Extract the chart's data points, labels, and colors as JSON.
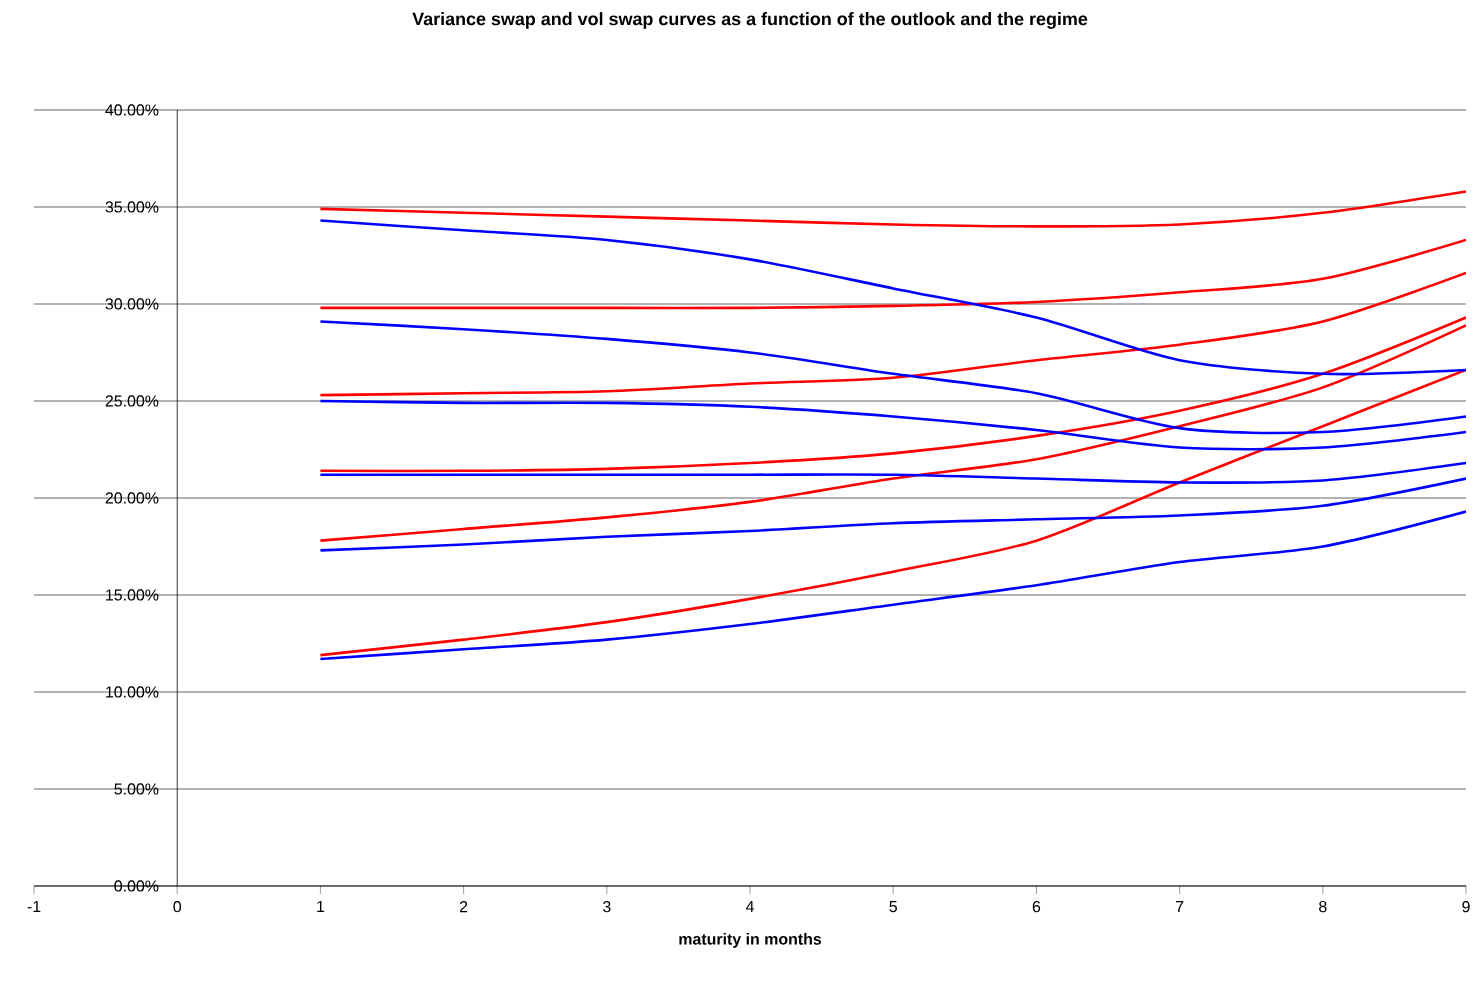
{
  "chart_data": {
    "type": "line",
    "title": "Variance swap and vol swap curves as a function of the outlook and the regime",
    "xlabel": "maturity in months",
    "x": [
      1,
      2,
      3,
      4,
      5,
      6,
      7,
      8,
      9
    ],
    "series": [
      {
        "color": "#ff0000",
        "values": [
          34.9,
          34.7,
          34.5,
          34.3,
          34.1,
          34.0,
          34.1,
          34.7,
          35.8
        ]
      },
      {
        "color": "#ff0000",
        "values": [
          29.8,
          29.8,
          29.8,
          29.8,
          29.9,
          30.1,
          30.6,
          31.3,
          33.3
        ]
      },
      {
        "color": "#ff0000",
        "values": [
          25.3,
          25.4,
          25.5,
          25.9,
          26.2,
          27.1,
          27.9,
          29.1,
          31.6
        ]
      },
      {
        "color": "#ff0000",
        "values": [
          21.4,
          21.4,
          21.5,
          21.8,
          22.3,
          23.2,
          24.5,
          26.4,
          29.3
        ]
      },
      {
        "color": "#ff0000",
        "values": [
          17.8,
          18.4,
          19.0,
          19.8,
          21.0,
          22.0,
          23.7,
          25.7,
          28.9
        ]
      },
      {
        "color": "#ff0000",
        "values": [
          11.9,
          12.7,
          13.6,
          14.8,
          16.2,
          17.8,
          20.8,
          23.7,
          26.6
        ]
      },
      {
        "color": "#0000ff",
        "values": [
          34.3,
          33.8,
          33.3,
          32.3,
          30.8,
          29.3,
          27.1,
          26.4,
          26.6
        ]
      },
      {
        "color": "#0000ff",
        "values": [
          29.1,
          28.7,
          28.2,
          27.5,
          26.4,
          25.4,
          23.6,
          23.4,
          24.2
        ]
      },
      {
        "color": "#0000ff",
        "values": [
          25.0,
          24.9,
          24.9,
          24.7,
          24.2,
          23.5,
          22.6,
          22.6,
          23.4
        ]
      },
      {
        "color": "#0000ff",
        "values": [
          21.2,
          21.2,
          21.2,
          21.2,
          21.2,
          21.0,
          20.8,
          20.9,
          21.8
        ]
      },
      {
        "color": "#0000ff",
        "values": [
          17.3,
          17.6,
          18.0,
          18.3,
          18.7,
          18.9,
          19.1,
          19.6,
          21.0
        ]
      },
      {
        "color": "#0000ff",
        "values": [
          11.7,
          12.2,
          12.7,
          13.5,
          14.5,
          15.5,
          16.7,
          17.5,
          19.3
        ]
      }
    ],
    "xlim": [
      -1,
      9
    ],
    "xticks": [
      -1,
      0,
      1,
      2,
      3,
      4,
      5,
      6,
      7,
      8,
      9
    ],
    "ylim": [
      0,
      40
    ],
    "yticks": [
      {
        "value": 0,
        "label": "0.00%"
      },
      {
        "value": 5,
        "label": "5.00%"
      },
      {
        "value": 10,
        "label": "10.00%"
      },
      {
        "value": 15,
        "label": "15.00%"
      },
      {
        "value": 20,
        "label": "20.00%"
      },
      {
        "value": 25,
        "label": "25.00%"
      },
      {
        "value": 30,
        "label": "30.00%"
      },
      {
        "value": 35,
        "label": "35.00%"
      },
      {
        "value": 40,
        "label": "40.00%"
      }
    ],
    "grid": "y",
    "marker": "none",
    "line_style": "solid"
  }
}
